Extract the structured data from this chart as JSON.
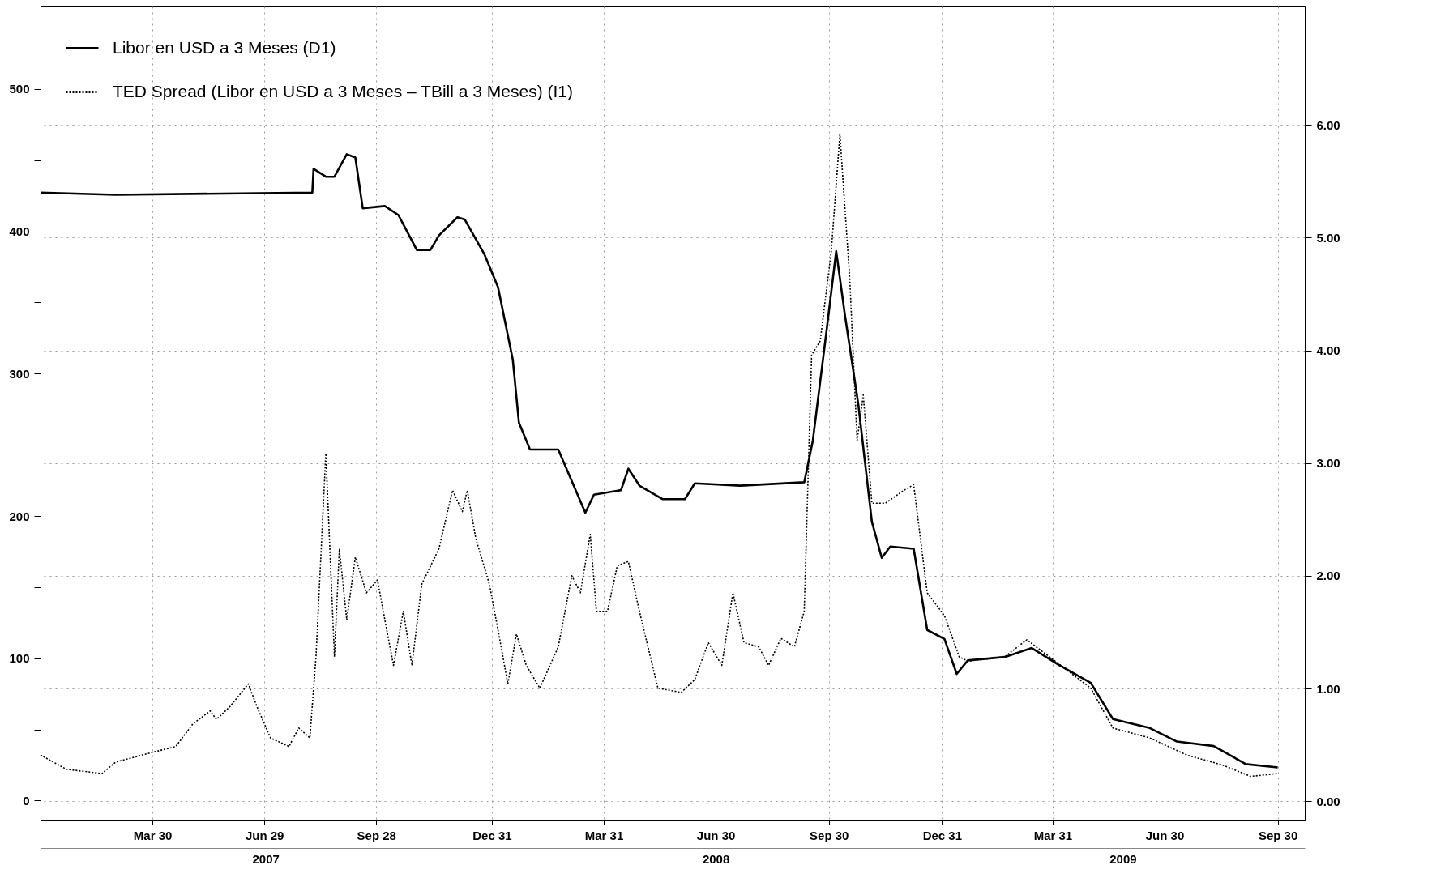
{
  "chart_data": {
    "type": "line",
    "legend": "top left",
    "grid": true,
    "marker": "none",
    "xlim": [
      "2006-12-29",
      "2009-10-22"
    ],
    "xticks": [
      {
        "value": "2007-03-30",
        "label": "Mar 30"
      },
      {
        "value": "2007-06-29",
        "label": "Jun 29"
      },
      {
        "value": "2007-09-28",
        "label": "Sep 28"
      },
      {
        "value": "2007-12-31",
        "label": "Dec 31"
      },
      {
        "value": "2008-03-31",
        "label": "Mar 31"
      },
      {
        "value": "2008-06-30",
        "label": "Jun 30"
      },
      {
        "value": "2008-09-30",
        "label": "Sep 30"
      },
      {
        "value": "2008-12-31",
        "label": "Dec 31"
      },
      {
        "value": "2009-03-31",
        "label": "Mar 31"
      },
      {
        "value": "2009-06-30",
        "label": "Jun 30"
      },
      {
        "value": "2009-09-30",
        "label": "Sep 30"
      }
    ],
    "x2lim": [
      "2006-12-29",
      "2009-10-22"
    ],
    "x2ticks": [
      {
        "value": "2007-06-30",
        "label": "2007"
      },
      {
        "value": "2008-06-30",
        "label": "2008"
      },
      {
        "value": "2009-05-27",
        "label": "2009"
      }
    ],
    "ylim": [
      -14,
      558
    ],
    "yticks": [
      0,
      {
        "value": 50,
        "label": null
      },
      100,
      {
        "value": 150,
        "label": null
      },
      200,
      {
        "value": 250,
        "label": null
      },
      300,
      {
        "value": 350,
        "label": null
      },
      400,
      {
        "value": 450,
        "label": null
      },
      500
    ],
    "y2lim": [
      -0.17,
      7.05
    ],
    "y2ticks": [
      {
        "value": 0,
        "label": "0.00"
      },
      {
        "value": 1,
        "label": "1.00"
      },
      {
        "value": 2,
        "label": "2.00"
      },
      {
        "value": 3,
        "label": "3.00"
      },
      {
        "value": 4,
        "label": "4.00"
      },
      {
        "value": 5,
        "label": "5.00"
      },
      {
        "value": 6,
        "label": "6.00"
      }
    ],
    "series": [
      {
        "name": "Libor en USD a 3 Meses (D1)",
        "color": "#000000",
        "axis": "y2",
        "line_style": "solid",
        "x": [
          "2006-12-29",
          "2007-02-28",
          "2007-08-07",
          "2007-08-08",
          "2007-08-18",
          "2007-08-25",
          "2007-09-04",
          "2007-09-11",
          "2007-09-17",
          "2007-10-05",
          "2007-10-16",
          "2007-10-31",
          "2007-11-11",
          "2007-11-18",
          "2007-12-03",
          "2007-12-09",
          "2007-12-25",
          "2008-01-05",
          "2008-01-17",
          "2008-01-22",
          "2008-01-31",
          "2008-02-23",
          "2008-03-16",
          "2008-03-23",
          "2008-04-14",
          "2008-04-20",
          "2008-04-29",
          "2008-05-18",
          "2008-06-05",
          "2008-06-13",
          "2008-07-20",
          "2008-09-10",
          "2008-09-17",
          "2008-09-28",
          "2008-10-06",
          "2008-10-13",
          "2008-10-24",
          "2008-11-04",
          "2008-11-12",
          "2008-11-19",
          "2008-12-08",
          "2008-12-19",
          "2009-01-02",
          "2009-01-12",
          "2009-01-21",
          "2009-02-20",
          "2009-03-14",
          "2009-04-05",
          "2009-05-01",
          "2009-05-19",
          "2009-06-18",
          "2009-07-10",
          "2009-08-09",
          "2009-09-04",
          "2009-09-30"
        ],
        "values": [
          5.4,
          5.38,
          5.4,
          5.61,
          5.54,
          5.54,
          5.74,
          5.71,
          5.26,
          5.28,
          5.2,
          4.89,
          4.89,
          5.02,
          5.18,
          5.16,
          4.85,
          4.56,
          3.92,
          3.36,
          3.12,
          3.12,
          2.56,
          2.72,
          2.76,
          2.95,
          2.8,
          2.68,
          2.68,
          2.82,
          2.8,
          2.83,
          3.2,
          4.16,
          4.88,
          4.32,
          3.52,
          2.48,
          2.16,
          2.26,
          2.24,
          1.52,
          1.44,
          1.13,
          1.25,
          1.28,
          1.36,
          1.21,
          1.05,
          0.73,
          0.65,
          0.53,
          0.49,
          0.33,
          0.3
        ]
      },
      {
        "name": "TED Spread (Libor en USD a 3 Meses – TBill a 3 Meses) (I1)",
        "color": "#000000",
        "axis": "y",
        "line_style": "dotted",
        "x": [
          "2006-12-29",
          "2007-01-19",
          "2007-02-17",
          "2007-02-28",
          "2007-03-26",
          "2007-04-18",
          "2007-05-02",
          "2007-05-16",
          "2007-05-21",
          "2007-06-01",
          "2007-06-16",
          "2007-06-23",
          "2007-07-04",
          "2007-07-19",
          "2007-07-27",
          "2007-08-05",
          "2007-08-10",
          "2007-08-18",
          "2007-08-25",
          "2007-08-29",
          "2007-09-04",
          "2007-09-11",
          "2007-09-20",
          "2007-09-29",
          "2007-10-05",
          "2007-10-12",
          "2007-10-20",
          "2007-10-27",
          "2007-11-04",
          "2007-11-18",
          "2007-11-29",
          "2007-12-07",
          "2007-12-11",
          "2007-12-18",
          "2007-12-29",
          "2008-01-05",
          "2008-01-13",
          "2008-01-20",
          "2008-01-28",
          "2008-02-08",
          "2008-02-23",
          "2008-03-05",
          "2008-03-12",
          "2008-03-20",
          "2008-03-25",
          "2008-04-03",
          "2008-04-11",
          "2008-04-20",
          "2008-04-29",
          "2008-05-14",
          "2008-06-02",
          "2008-06-13",
          "2008-06-24",
          "2008-07-05",
          "2008-07-14",
          "2008-07-23",
          "2008-08-04",
          "2008-08-12",
          "2008-08-22",
          "2008-09-02",
          "2008-09-10",
          "2008-09-16",
          "2008-09-23",
          "2008-10-02",
          "2008-10-09",
          "2008-10-17",
          "2008-10-23",
          "2008-10-28",
          "2008-11-04",
          "2008-11-15",
          "2008-11-30",
          "2008-12-08",
          "2008-12-19",
          "2009-01-02",
          "2009-01-14",
          "2009-01-21",
          "2009-02-20",
          "2009-03-10",
          "2009-04-05",
          "2009-05-01",
          "2009-05-19",
          "2009-06-18",
          "2009-07-18",
          "2009-08-16",
          "2009-09-08",
          "2009-09-30"
        ],
        "values": [
          32,
          22,
          19,
          27,
          33,
          38,
          54,
          63,
          57,
          66,
          82,
          66,
          44,
          38,
          51,
          44,
          101,
          244,
          101,
          177,
          127,
          171,
          146,
          155,
          127,
          95,
          133,
          95,
          152,
          177,
          218,
          203,
          218,
          184,
          152,
          120,
          82,
          117,
          95,
          79,
          108,
          158,
          146,
          187,
          133,
          133,
          165,
          168,
          133,
          79,
          76,
          85,
          111,
          95,
          146,
          111,
          108,
          95,
          114,
          108,
          133,
          313,
          323,
          386,
          468,
          367,
          253,
          285,
          209,
          209,
          218,
          222,
          146,
          130,
          101,
          98,
          101,
          113,
          96,
          79,
          51,
          44,
          32,
          25,
          17,
          19
        ]
      }
    ]
  }
}
